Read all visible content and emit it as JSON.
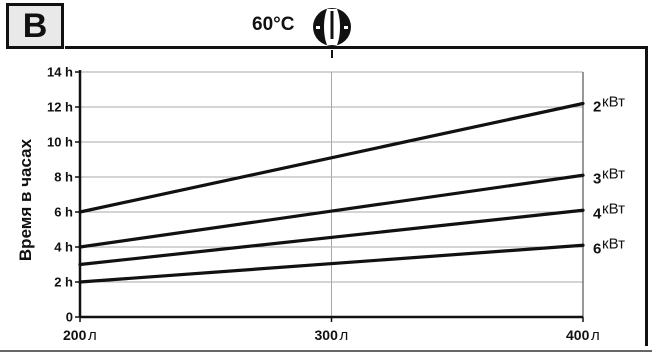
{
  "badge": "B",
  "temperature": "60°C",
  "chart_data": {
    "type": "line",
    "ylabel": "Время в часах",
    "xlabel": "",
    "x": [
      200,
      400
    ],
    "x_ticks": [
      200,
      300,
      400
    ],
    "x_unit": "л",
    "xlim": [
      200,
      400
    ],
    "y_ticks": [
      0,
      2,
      4,
      6,
      8,
      10,
      12,
      14
    ],
    "y_tick_labels": [
      "0",
      "2 h",
      "4 h",
      "6 h",
      "8 h",
      "10 h",
      "12 h",
      "14 h"
    ],
    "ylim": [
      0,
      14
    ],
    "grid": true,
    "series": [
      {
        "num": "2",
        "unit": "кВт",
        "values": [
          6,
          12.2
        ]
      },
      {
        "num": "3",
        "unit": "кВт",
        "values": [
          4,
          8.1
        ]
      },
      {
        "num": "4",
        "unit": "кВт",
        "values": [
          3,
          6.1
        ]
      },
      {
        "num": "6",
        "unit": "кВт",
        "values": [
          2,
          4.1
        ]
      }
    ]
  }
}
